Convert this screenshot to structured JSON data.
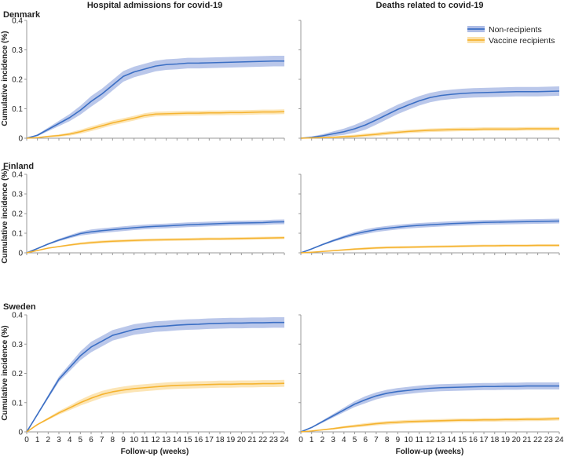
{
  "colors": {
    "non_recipients": "#3b6fc4",
    "non_recipients_band": "#aebde6",
    "vaccine_recipients": "#f5b330",
    "vaccine_recipients_band": "#fbe0a8",
    "axis": "#999999"
  },
  "column_titles": [
    "Hospital admissions for covid-19",
    "Deaths related to covid-19"
  ],
  "row_labels": [
    "Denmark",
    "Finland",
    "Sweden",
    ""
  ],
  "y_axis_title": "Cumulative incidence (%)",
  "x_axis_title": "Follow-up (weeks)",
  "x_ticks": [
    "0",
    "1",
    "2",
    "3",
    "4",
    "5",
    "6",
    "7",
    "8",
    "9",
    "10",
    "11",
    "12",
    "13",
    "14",
    "15",
    "16",
    "17",
    "18",
    "19",
    "20",
    "21",
    "22",
    "23",
    "24"
  ],
  "y_ticks": [
    "0",
    "0.1",
    "0.2",
    "0.3",
    "0.4"
  ],
  "legend": {
    "non_recipients": "Non-recipients",
    "vaccine_recipients": "Vaccine recipients"
  },
  "chart_data": [
    {
      "type": "line",
      "title": "Hospital admissions for covid-19",
      "country": "Denmark",
      "xlabel": "",
      "ylabel": "Cumulative incidence (%)",
      "xlim": [
        0,
        24
      ],
      "ylim": [
        0,
        0.4
      ],
      "x": [
        0,
        1,
        2,
        3,
        4,
        5,
        6,
        7,
        8,
        9,
        10,
        11,
        12,
        13,
        14,
        15,
        16,
        17,
        18,
        19,
        20,
        21,
        22,
        23,
        24
      ],
      "series": [
        {
          "name": "Non-recipients",
          "values": [
            0,
            0.01,
            0.03,
            0.05,
            0.07,
            0.095,
            0.125,
            0.15,
            0.18,
            0.21,
            0.225,
            0.235,
            0.245,
            0.25,
            0.252,
            0.255,
            0.255,
            0.256,
            0.257,
            0.258,
            0.259,
            0.26,
            0.261,
            0.262,
            0.262
          ],
          "band": 0.018
        },
        {
          "name": "Vaccine recipients",
          "values": [
            0,
            0.002,
            0.006,
            0.009,
            0.014,
            0.022,
            0.032,
            0.042,
            0.052,
            0.06,
            0.068,
            0.077,
            0.082,
            0.083,
            0.084,
            0.085,
            0.085,
            0.086,
            0.086,
            0.087,
            0.087,
            0.088,
            0.089,
            0.089,
            0.09
          ],
          "band": 0.008
        }
      ]
    },
    {
      "type": "line",
      "title": "Deaths related to covid-19",
      "country": "Denmark",
      "xlabel": "",
      "ylabel": "",
      "xlim": [
        0,
        24
      ],
      "ylim": [
        0,
        0.4
      ],
      "x": [
        0,
        1,
        2,
        3,
        4,
        5,
        6,
        7,
        8,
        9,
        10,
        11,
        12,
        13,
        14,
        15,
        16,
        17,
        18,
        19,
        20,
        21,
        22,
        23,
        24
      ],
      "series": [
        {
          "name": "Non-recipients",
          "values": [
            0,
            0.003,
            0.008,
            0.015,
            0.022,
            0.032,
            0.045,
            0.062,
            0.08,
            0.098,
            0.113,
            0.127,
            0.138,
            0.145,
            0.149,
            0.152,
            0.154,
            0.155,
            0.156,
            0.157,
            0.158,
            0.158,
            0.158,
            0.159,
            0.16
          ],
          "band": 0.016
        },
        {
          "name": "Vaccine recipients",
          "values": [
            0,
            0.001,
            0.002,
            0.003,
            0.005,
            0.007,
            0.01,
            0.013,
            0.017,
            0.02,
            0.023,
            0.025,
            0.027,
            0.028,
            0.029,
            0.03,
            0.03,
            0.031,
            0.031,
            0.031,
            0.031,
            0.032,
            0.032,
            0.032,
            0.032
          ],
          "band": 0.006
        }
      ]
    },
    {
      "type": "line",
      "title": "Hospital admissions for covid-19",
      "country": "Finland",
      "xlabel": "",
      "ylabel": "Cumulative incidence (%)",
      "xlim": [
        0,
        24
      ],
      "ylim": [
        0,
        0.4
      ],
      "x": [
        0,
        1,
        2,
        3,
        4,
        5,
        6,
        7,
        8,
        9,
        10,
        11,
        12,
        13,
        14,
        15,
        16,
        17,
        18,
        19,
        20,
        21,
        22,
        23,
        24
      ],
      "series": [
        {
          "name": "Non-recipients",
          "values": [
            0,
            0.022,
            0.045,
            0.065,
            0.082,
            0.098,
            0.107,
            0.113,
            0.118,
            0.123,
            0.128,
            0.132,
            0.135,
            0.137,
            0.14,
            0.143,
            0.145,
            0.147,
            0.149,
            0.151,
            0.152,
            0.153,
            0.154,
            0.157,
            0.158
          ],
          "band": 0.012
        },
        {
          "name": "Vaccine recipients",
          "values": [
            0,
            0.012,
            0.024,
            0.032,
            0.04,
            0.047,
            0.052,
            0.056,
            0.059,
            0.061,
            0.063,
            0.065,
            0.066,
            0.067,
            0.068,
            0.069,
            0.07,
            0.071,
            0.071,
            0.072,
            0.073,
            0.074,
            0.075,
            0.076,
            0.077
          ],
          "band": 0.007
        }
      ]
    },
    {
      "type": "line",
      "title": "Deaths related to covid-19",
      "country": "Finland",
      "xlabel": "",
      "ylabel": "",
      "xlim": [
        0,
        24
      ],
      "ylim": [
        0,
        0.4
      ],
      "x": [
        0,
        1,
        2,
        3,
        4,
        5,
        6,
        7,
        8,
        9,
        10,
        11,
        12,
        13,
        14,
        15,
        16,
        17,
        18,
        19,
        20,
        21,
        22,
        23,
        24
      ],
      "series": [
        {
          "name": "Non-recipients",
          "values": [
            0,
            0.02,
            0.042,
            0.062,
            0.08,
            0.096,
            0.108,
            0.118,
            0.125,
            0.131,
            0.136,
            0.14,
            0.143,
            0.146,
            0.149,
            0.151,
            0.153,
            0.155,
            0.156,
            0.157,
            0.158,
            0.159,
            0.16,
            0.161,
            0.162
          ],
          "band": 0.012
        },
        {
          "name": "Vaccine recipients",
          "values": [
            0,
            0.003,
            0.007,
            0.011,
            0.015,
            0.019,
            0.022,
            0.025,
            0.027,
            0.028,
            0.029,
            0.03,
            0.031,
            0.032,
            0.033,
            0.034,
            0.035,
            0.036,
            0.036,
            0.037,
            0.037,
            0.037,
            0.038,
            0.038,
            0.038
          ],
          "band": 0.006
        }
      ]
    },
    {
      "type": "line",
      "title": "Hospital admissions for covid-19",
      "country": "Sweden",
      "xlabel": "Follow-up (weeks)",
      "ylabel": "Cumulative incidence (%)",
      "xlim": [
        0,
        24
      ],
      "ylim": [
        0,
        0.4
      ],
      "x": [
        0,
        1,
        2,
        3,
        4,
        5,
        6,
        7,
        8,
        9,
        10,
        11,
        12,
        13,
        14,
        15,
        16,
        17,
        18,
        19,
        20,
        21,
        22,
        23,
        24
      ],
      "series": [
        {
          "name": "Non-recipients",
          "values": [
            0,
            0.06,
            0.12,
            0.18,
            0.22,
            0.26,
            0.29,
            0.31,
            0.33,
            0.34,
            0.35,
            0.355,
            0.36,
            0.362,
            0.365,
            0.367,
            0.368,
            0.37,
            0.371,
            0.372,
            0.372,
            0.373,
            0.373,
            0.374,
            0.374
          ],
          "band": 0.018
        },
        {
          "name": "Vaccine recipients",
          "values": [
            0,
            0.025,
            0.045,
            0.065,
            0.082,
            0.1,
            0.115,
            0.128,
            0.137,
            0.143,
            0.148,
            0.151,
            0.154,
            0.157,
            0.159,
            0.16,
            0.161,
            0.162,
            0.163,
            0.163,
            0.164,
            0.164,
            0.165,
            0.165,
            0.166
          ],
          "band": 0.012
        }
      ]
    },
    {
      "type": "line",
      "title": "Deaths related to covid-19",
      "country": "Sweden",
      "xlabel": "Follow-up (weeks)",
      "ylabel": "",
      "xlim": [
        0,
        24
      ],
      "ylim": [
        0,
        0.4
      ],
      "x": [
        0,
        1,
        2,
        3,
        4,
        5,
        6,
        7,
        8,
        9,
        10,
        11,
        12,
        13,
        14,
        15,
        16,
        17,
        18,
        19,
        20,
        21,
        22,
        23,
        24
      ],
      "series": [
        {
          "name": "Non-recipients",
          "values": [
            0,
            0.015,
            0.035,
            0.055,
            0.075,
            0.095,
            0.11,
            0.123,
            0.132,
            0.138,
            0.142,
            0.146,
            0.149,
            0.151,
            0.152,
            0.153,
            0.154,
            0.155,
            0.155,
            0.156,
            0.156,
            0.157,
            0.157,
            0.157,
            0.157
          ],
          "band": 0.012
        },
        {
          "name": "Vaccine recipients",
          "values": [
            0,
            0.003,
            0.007,
            0.011,
            0.016,
            0.02,
            0.024,
            0.028,
            0.031,
            0.033,
            0.035,
            0.036,
            0.037,
            0.038,
            0.039,
            0.04,
            0.04,
            0.041,
            0.041,
            0.042,
            0.042,
            0.043,
            0.043,
            0.044,
            0.045
          ],
          "band": 0.006
        }
      ]
    }
  ]
}
